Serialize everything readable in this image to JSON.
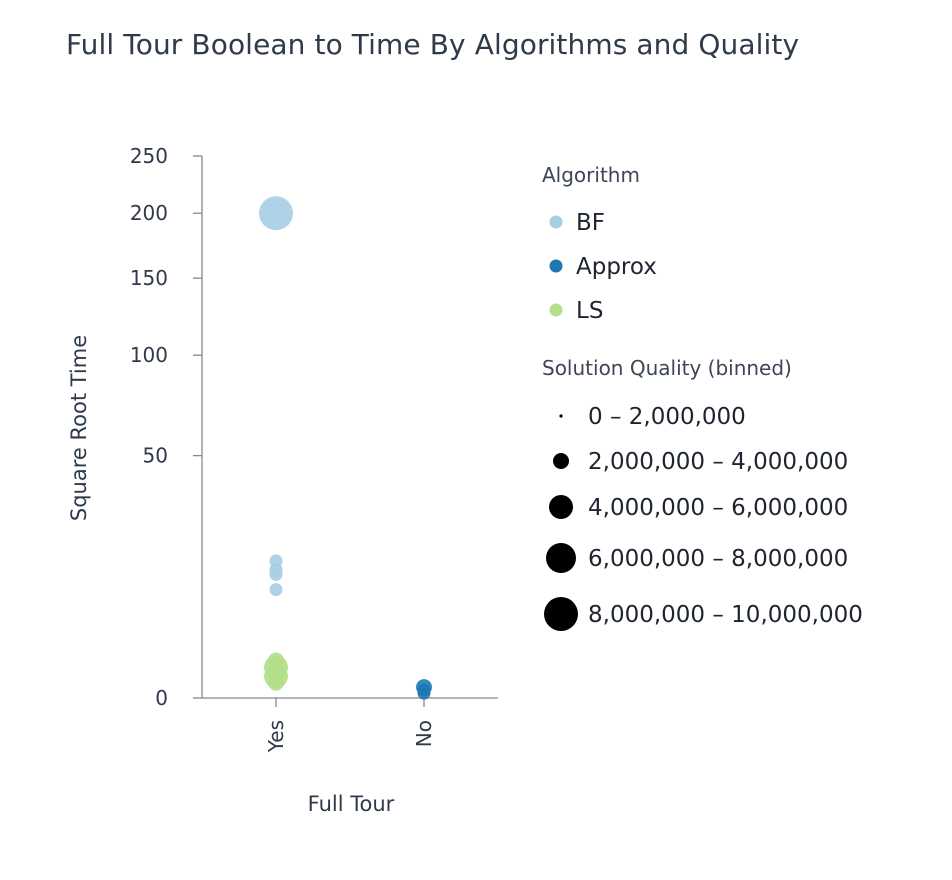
{
  "chart_data": {
    "type": "scatter",
    "title": "Full Tour Boolean to Time By Algorithms and Quality",
    "xlabel": "Full Tour",
    "ylabel": "Square Root Time",
    "y_scale": "sqrt",
    "categories": [
      "Yes",
      "No"
    ],
    "y_ticks": [
      0,
      50,
      100,
      150,
      200,
      250
    ],
    "ylim": [
      0,
      250
    ],
    "grid": false,
    "legend_placement": "right",
    "color_legend": {
      "title": "Algorithm",
      "entries": [
        {
          "name": "BF",
          "color": "#a6cee3"
        },
        {
          "name": "Approx",
          "color": "#1f78b4"
        },
        {
          "name": "LS",
          "color": "#b2df8a"
        }
      ]
    },
    "size_legend": {
      "title": "Solution Quality (binned)",
      "entries": [
        {
          "label": "0 – 2,000,000",
          "rank": 0
        },
        {
          "label": "2,000,000 – 4,000,000",
          "rank": 1
        },
        {
          "label": "4,000,000 – 6,000,000",
          "rank": 2
        },
        {
          "label": "6,000,000 – 8,000,000",
          "rank": 3
        },
        {
          "label": "8,000,000 – 10,000,000",
          "rank": 4
        }
      ]
    },
    "series": [
      {
        "name": "BF",
        "points": [
          {
            "x": "Yes",
            "y": 200,
            "quality_bin": 4
          },
          {
            "x": "Yes",
            "y": 16,
            "quality_bin": 0
          },
          {
            "x": "Yes",
            "y": 14,
            "quality_bin": 0
          },
          {
            "x": "Yes",
            "y": 13,
            "quality_bin": 0
          },
          {
            "x": "Yes",
            "y": 10,
            "quality_bin": 0
          }
        ]
      },
      {
        "name": "LS",
        "points": [
          {
            "x": "Yes",
            "y": 1.2,
            "quality_bin": 1
          },
          {
            "x": "Yes",
            "y": 0.8,
            "quality_bin": 2
          },
          {
            "x": "Yes",
            "y": 0.4,
            "quality_bin": 2
          },
          {
            "x": "Yes",
            "y": 0.2,
            "quality_bin": 1
          }
        ]
      },
      {
        "name": "Approx",
        "points": [
          {
            "x": "No",
            "y": 0.1,
            "quality_bin": 1
          },
          {
            "x": "No",
            "y": 0.05,
            "quality_bin": 0
          },
          {
            "x": "No",
            "y": 0.02,
            "quality_bin": 0
          }
        ]
      }
    ]
  }
}
